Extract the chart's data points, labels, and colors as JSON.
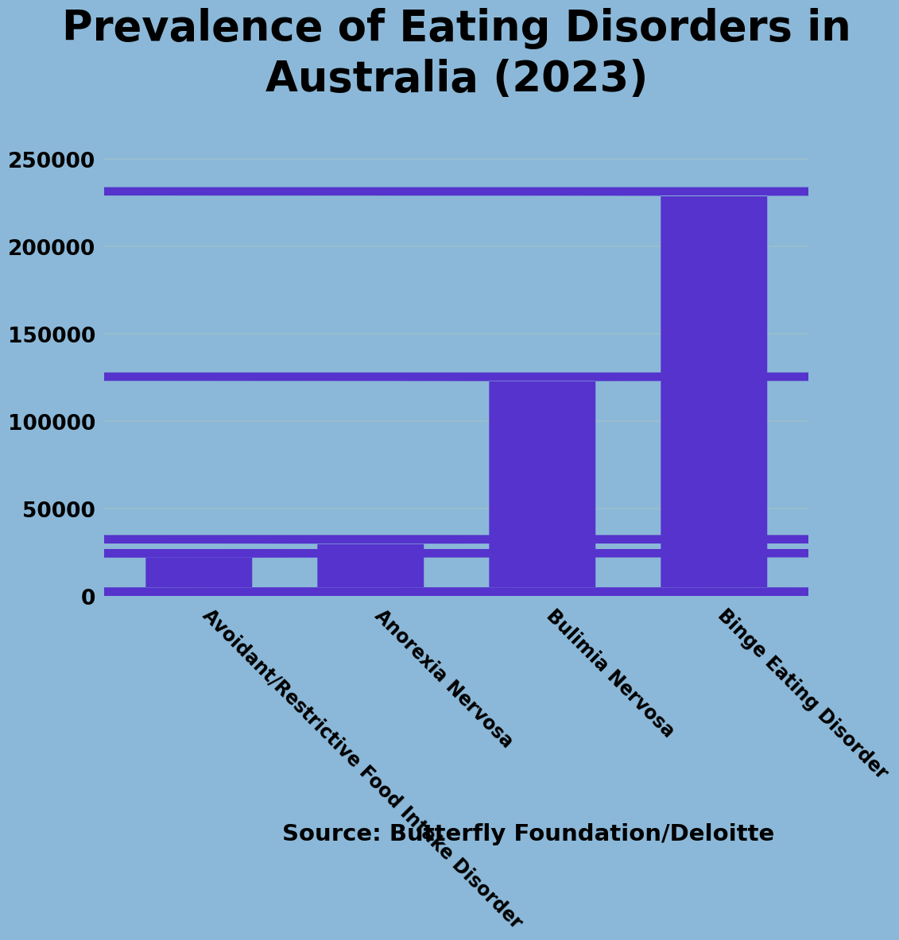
{
  "title": "Prevalence of Eating Disorders in\nAustralia (2023)",
  "categories": [
    "Avoidant/Restrictive Food Intake Disorder",
    "Anorexia Nervosa",
    "Bulimia Nervosa",
    "Binge Eating Disorder"
  ],
  "values": [
    27000,
    35000,
    128000,
    234000
  ],
  "bar_color": "#5533CC",
  "background_color": "#8BB8D8",
  "grid_color": "#9BBFCF",
  "title_fontsize": 38,
  "tick_fontsize": 19,
  "label_fontsize": 17,
  "source_text": "Source: Butterfly Foundation/Deloitte",
  "source_fontsize": 21,
  "ylim": [
    0,
    270000
  ],
  "yticks": [
    0,
    50000,
    100000,
    150000,
    200000,
    250000
  ]
}
